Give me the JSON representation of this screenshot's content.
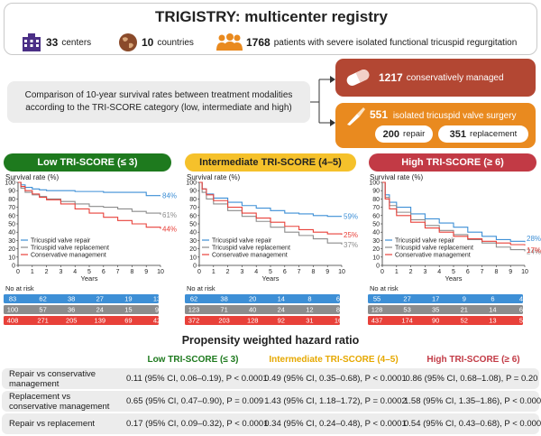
{
  "header": {
    "title": "TRIGISTRY: multicenter registry",
    "stats": [
      {
        "value": "33",
        "label": "centers",
        "icon": "building-icon"
      },
      {
        "value": "10",
        "label": "countries",
        "icon": "globe-icon"
      },
      {
        "value": "1768",
        "label": "patients with severe isolated functional tricuspid regurgitation",
        "icon": "people-icon"
      }
    ]
  },
  "comparison": {
    "line1": "Comparison of 10-year survival rates between treatment modalities",
    "line2": "according to the TRI-SCORE category (low, intermediate and high)"
  },
  "conservative": {
    "value": "1217",
    "label": "conservatively managed",
    "color": "#b34733"
  },
  "surgery": {
    "value": "551",
    "label": "isolated tricuspid valve surgery",
    "color": "#e98a1f",
    "repair_value": "200",
    "repair_label": "repair",
    "replacement_value": "351",
    "replacement_label": "replacement"
  },
  "colors": {
    "repair": "#3d8fd6",
    "replacement": "#8c8c8c",
    "conservative": "#e8413a",
    "low": "#1e7a1e",
    "intermediate": "#f5c12b",
    "high": "#c23a45"
  },
  "chart_data": [
    {
      "type": "line",
      "title": "Low TRI-SCORE (≤ 3)",
      "ylabel": "Survival rate (%)",
      "xlabel": "Years",
      "ylim": [
        0,
        100
      ],
      "xlim": [
        0,
        10
      ],
      "y_ticks": [
        "0",
        "10",
        "20",
        "30",
        "40",
        "50",
        "60",
        "70",
        "80",
        "90",
        "100"
      ],
      "x_ticks": [
        "0",
        "1",
        "2",
        "3",
        "4",
        "5",
        "6",
        "7",
        "8",
        "9",
        "10"
      ],
      "legend": [
        "Tricuspid valve repair",
        "Tricuspid valve replacement",
        "Conservative management"
      ],
      "end_labels": [
        "84%",
        "61%",
        "44%"
      ],
      "series": [
        {
          "name": "Tricuspid valve repair",
          "x": [
            0,
            0.2,
            0.5,
            1,
            1.5,
            2,
            3,
            4,
            5,
            6,
            7,
            8,
            9,
            10
          ],
          "values": [
            100,
            97,
            94,
            92,
            91,
            90,
            90,
            89,
            89,
            88,
            88,
            88,
            84,
            84
          ]
        },
        {
          "name": "Tricuspid valve replacement",
          "x": [
            0,
            0.2,
            0.5,
            1,
            1.5,
            2,
            3,
            4,
            5,
            6,
            7,
            8,
            9,
            10
          ],
          "values": [
            100,
            93,
            88,
            85,
            83,
            80,
            77,
            74,
            71,
            70,
            68,
            65,
            63,
            61
          ]
        },
        {
          "name": "Conservative management",
          "x": [
            0,
            0.2,
            0.5,
            1,
            1.5,
            2,
            3,
            4,
            5,
            6,
            7,
            8,
            9,
            10
          ],
          "values": [
            100,
            95,
            90,
            86,
            82,
            79,
            74,
            68,
            63,
            58,
            54,
            50,
            46,
            44
          ]
        }
      ],
      "at_risk": {
        "label": "No at risk",
        "rows": [
          [
            "83",
            "62",
            "38",
            "27",
            "19",
            "13"
          ],
          [
            "100",
            "57",
            "36",
            "24",
            "15",
            "9"
          ],
          [
            "408",
            "271",
            "205",
            "139",
            "69",
            "42"
          ]
        ]
      }
    },
    {
      "type": "line",
      "title": "Intermediate TRI-SCORE (4–5)",
      "ylabel": "Survival rate (%)",
      "xlabel": "Years",
      "ylim": [
        0,
        100
      ],
      "xlim": [
        0,
        10
      ],
      "y_ticks": [
        "0",
        "10",
        "20",
        "30",
        "40",
        "50",
        "60",
        "70",
        "80",
        "90",
        "100"
      ],
      "x_ticks": [
        "0",
        "1",
        "2",
        "3",
        "4",
        "5",
        "6",
        "7",
        "8",
        "9",
        "10"
      ],
      "legend": [
        "Tricuspid valve repair",
        "Tricuspid valve replacement",
        "Conservative management"
      ],
      "end_labels": [
        "59%",
        "37%",
        "25%"
      ],
      "series": [
        {
          "name": "Tricuspid valve repair",
          "x": [
            0,
            0.2,
            0.5,
            1,
            2,
            3,
            4,
            5,
            6,
            7,
            8,
            9,
            10
          ],
          "values": [
            100,
            92,
            86,
            81,
            76,
            72,
            69,
            66,
            63,
            62,
            60,
            59,
            59
          ]
        },
        {
          "name": "Tricuspid valve replacement",
          "x": [
            0,
            0.2,
            0.5,
            1,
            2,
            3,
            4,
            5,
            6,
            7,
            8,
            9,
            10
          ],
          "values": [
            100,
            88,
            80,
            74,
            66,
            59,
            53,
            46,
            40,
            36,
            32,
            27,
            25
          ]
        },
        {
          "name": "Conservative management",
          "x": [
            0,
            0.2,
            0.5,
            1,
            2,
            3,
            4,
            5,
            6,
            7,
            8,
            9,
            10
          ],
          "values": [
            100,
            92,
            85,
            78,
            70,
            63,
            57,
            52,
            47,
            43,
            40,
            38,
            37
          ]
        }
      ],
      "at_risk": {
        "label": "No at risk",
        "rows": [
          [
            "62",
            "38",
            "20",
            "14",
            "8",
            "6"
          ],
          [
            "123",
            "71",
            "40",
            "24",
            "12",
            "8"
          ],
          [
            "372",
            "203",
            "128",
            "92",
            "31",
            "16"
          ]
        ]
      }
    },
    {
      "type": "line",
      "title": "High TRI-SCORE (≥ 6)",
      "ylabel": "Survival rate (%)",
      "xlabel": "Years",
      "ylim": [
        0,
        100
      ],
      "xlim": [
        0,
        10
      ],
      "y_ticks": [
        "0",
        "10",
        "20",
        "30",
        "40",
        "50",
        "60",
        "70",
        "80",
        "90",
        "100"
      ],
      "x_ticks": [
        "0",
        "1",
        "2",
        "3",
        "4",
        "5",
        "6",
        "7",
        "8",
        "9",
        "10"
      ],
      "legend": [
        "Tricuspid valve repair",
        "Tricuspid valve replacement",
        "Conservative management"
      ],
      "end_labels": [
        "28%",
        "24%",
        "17%"
      ],
      "series": [
        {
          "name": "Tricuspid valve repair",
          "x": [
            0,
            0.2,
            0.5,
            1,
            2,
            3,
            4,
            5,
            6,
            7,
            8,
            9,
            10
          ],
          "values": [
            100,
            85,
            76,
            70,
            62,
            56,
            51,
            46,
            40,
            35,
            31,
            29,
            28
          ]
        },
        {
          "name": "Tricuspid valve replacement",
          "x": [
            0,
            0.2,
            0.5,
            1,
            2,
            3,
            4,
            5,
            6,
            7,
            8,
            9,
            10
          ],
          "values": [
            100,
            82,
            72,
            64,
            55,
            48,
            42,
            37,
            31,
            27,
            22,
            19,
            17
          ]
        },
        {
          "name": "Conservative management",
          "x": [
            0,
            0.2,
            0.5,
            1,
            2,
            3,
            4,
            5,
            6,
            7,
            8,
            9,
            10
          ],
          "values": [
            100,
            80,
            68,
            60,
            52,
            45,
            40,
            35,
            32,
            29,
            27,
            25,
            24
          ]
        }
      ],
      "at_risk": {
        "label": "No at risk",
        "rows": [
          [
            "55",
            "27",
            "17",
            "9",
            "6",
            "4"
          ],
          [
            "128",
            "53",
            "35",
            "21",
            "14",
            "6"
          ],
          [
            "437",
            "174",
            "90",
            "52",
            "13",
            "5"
          ]
        ]
      }
    }
  ],
  "hazard": {
    "title": "Propensity weighted hazard ratio",
    "columns": [
      "Low TRI-SCORE (≤ 3)",
      "Intermediate TRI-SCORE (4–5)",
      "High TRI-SCORE (≥ 6)"
    ],
    "rows": [
      {
        "label_l1": "Repair vs conservative",
        "label_l2": "management",
        "values": [
          "0.11 (95% CI, 0.06–0.19), P < 0.0001",
          "0.49 (95% CI, 0.35–0.68), P < 0.0001",
          "0.86 (95% CI, 0.68–1.08), P = 0.20"
        ]
      },
      {
        "label_l1": "Replacement vs",
        "label_l2": "conservative management",
        "values": [
          "0.65 (95% CI, 0.47–0.90), P = 0.009",
          "1.43 (95% CI, 1.18–1.72), P = 0.0002",
          "1.58 (95% CI, 1.35–1.86), P < 0.0001"
        ]
      },
      {
        "label_l1": "Repair vs replacement",
        "label_l2": "",
        "values": [
          "0.17 (95% CI, 0.09–0.32), P < 0.0001",
          "0.34 (95% CI, 0.24–0.48), P < 0.0001",
          "0.54 (95% CI, 0.43–0.68), P < 0.0001"
        ]
      }
    ]
  }
}
